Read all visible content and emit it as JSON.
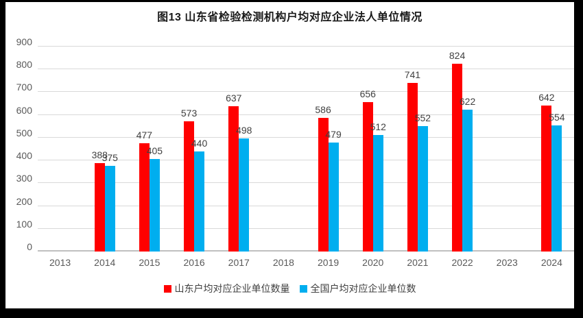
{
  "chart_data": {
    "type": "bar",
    "title": "图13 山东省检验检测机构户均对应企业法人单位情况",
    "categories": [
      "2013",
      "2014",
      "2015",
      "2016",
      "2017",
      "2018",
      "2019",
      "2020",
      "2021",
      "2022",
      "2023",
      "2024"
    ],
    "series": [
      {
        "name": "山东户均对应企业单位数量",
        "color": "#FF0000",
        "values": [
          null,
          388,
          477,
          573,
          637,
          null,
          586,
          656,
          741,
          824,
          null,
          642
        ]
      },
      {
        "name": "全国户均对应企业单位数",
        "color": "#00AEEF",
        "values": [
          null,
          375,
          405,
          440,
          498,
          null,
          479,
          512,
          552,
          622,
          null,
          554
        ]
      }
    ],
    "xlabel": "",
    "ylabel": "",
    "ylim": [
      0,
      900
    ],
    "ytick_step": 100,
    "grid": "on",
    "legend_position": "bottom",
    "colors": {
      "frame": "#000000",
      "grid": "#d9d9d9",
      "axis_text": "#595959",
      "data_label_text": "#404040",
      "title_text": "#1a1a1a",
      "background": "#ffffff"
    }
  }
}
